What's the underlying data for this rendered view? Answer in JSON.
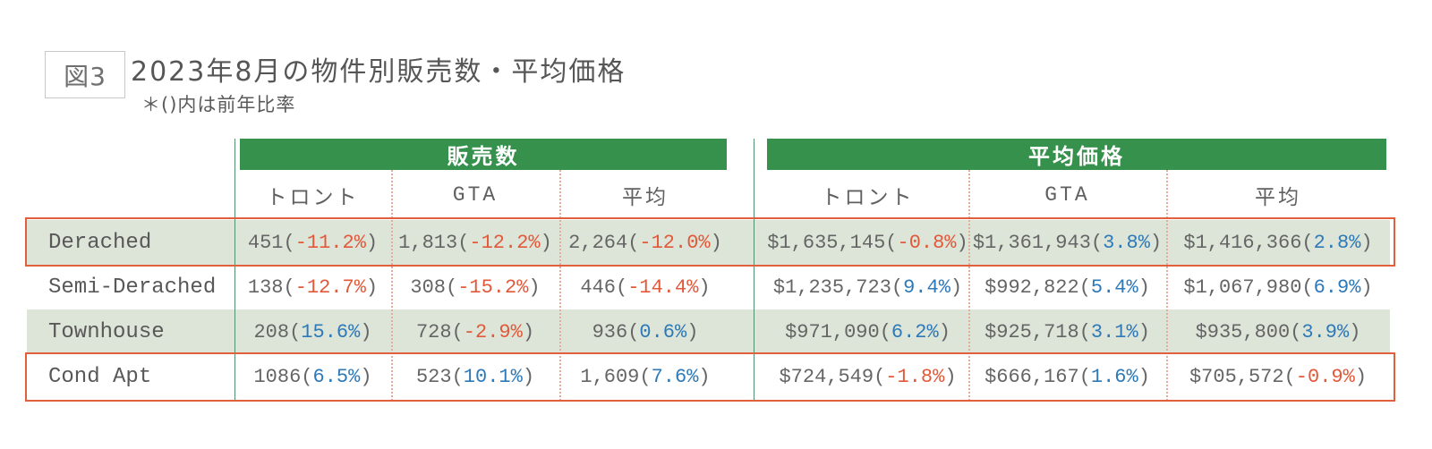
{
  "header": {
    "figure_label": "図3",
    "title": "2023年8月の物件別販売数・平均価格",
    "note": "＊()内は前年比率"
  },
  "chart_data": {
    "type": "table",
    "title": "2023年8月の物件別販売数・平均価格",
    "note_meaning": "＊()内は前年比率",
    "groups": [
      {
        "label": "販売数",
        "columns": [
          "トロント",
          "GTA",
          "平均"
        ]
      },
      {
        "label": "平均価格",
        "columns": [
          "トロント",
          "GTA",
          "平均"
        ]
      }
    ],
    "rows": [
      {
        "label": "Derached",
        "shaded": true,
        "highlighted": true,
        "sales": [
          {
            "value": "451",
            "pct": "-11.2%"
          },
          {
            "value": "1,813",
            "pct": "-12.2%"
          },
          {
            "value": "2,264",
            "pct": "-12.0%"
          }
        ],
        "prices": [
          {
            "value": "$1,635,145",
            "pct": "-0.8%"
          },
          {
            "value": "$1,361,943",
            "pct": "3.8%"
          },
          {
            "value": "$1,416,366",
            "pct": "2.8%"
          }
        ]
      },
      {
        "label": "Semi-Derached",
        "shaded": false,
        "highlighted": false,
        "sales": [
          {
            "value": "138",
            "pct": "-12.7%"
          },
          {
            "value": "308",
            "pct": "-15.2%"
          },
          {
            "value": "446",
            "pct": "-14.4%"
          }
        ],
        "prices": [
          {
            "value": "$1,235,723",
            "pct": "9.4%"
          },
          {
            "value": "$992,822",
            "pct": "5.4%"
          },
          {
            "value": "$1,067,980",
            "pct": "6.9%"
          }
        ]
      },
      {
        "label": "Townhouse",
        "shaded": true,
        "highlighted": false,
        "sales": [
          {
            "value": "208",
            "pct": "15.6%"
          },
          {
            "value": "728",
            "pct": "-2.9%"
          },
          {
            "value": "936",
            "pct": "0.6%"
          }
        ],
        "prices": [
          {
            "value": "$971,090",
            "pct": "6.2%"
          },
          {
            "value": "$925,718",
            "pct": "3.1%"
          },
          {
            "value": "$935,800",
            "pct": "3.9%"
          }
        ]
      },
      {
        "label": "Cond Apt",
        "shaded": false,
        "highlighted": true,
        "sales": [
          {
            "value": "1086",
            "pct": "6.5%"
          },
          {
            "value": "523",
            "pct": "10.1%"
          },
          {
            "value": "1,609",
            "pct": "7.6%"
          }
        ],
        "prices": [
          {
            "value": "$724,549",
            "pct": "-1.8%"
          },
          {
            "value": "$666,167",
            "pct": "1.6%"
          },
          {
            "value": "$705,572",
            "pct": "-0.9%"
          }
        ]
      }
    ]
  },
  "colors": {
    "group_header_green": "#35914c",
    "row_shade_green": "#dde5d9",
    "negative_pct": "#e2593a",
    "positive_pct": "#2e79b8",
    "group_divider_teal": "#53906f",
    "column_divider_dotted": "#e7ab99",
    "highlight_box_orange": "#e0603e"
  }
}
